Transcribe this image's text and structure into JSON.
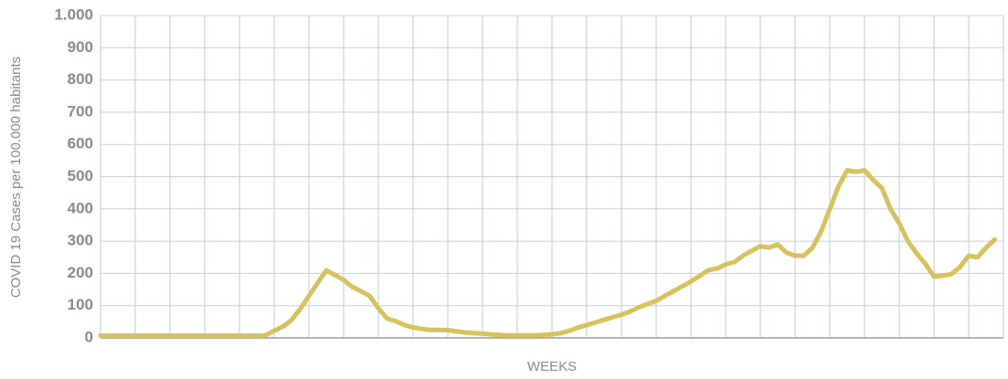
{
  "chart_data": {
    "type": "line",
    "ylabel": "COVID 19 Cases per 100.000 habitants",
    "xlabel": "WEEKS",
    "categories": [
      null,
      null,
      null,
      null,
      null,
      null,
      null,
      null,
      null,
      null,
      null,
      null,
      null,
      null,
      null,
      null,
      null,
      null,
      null,
      null,
      null,
      null,
      null,
      null,
      null,
      null,
      null,
      null,
      null,
      null,
      null,
      null,
      null,
      null,
      null,
      null,
      null,
      null,
      null,
      null,
      null,
      null,
      null,
      null,
      null,
      null,
      null,
      null,
      null,
      null,
      null,
      null,
      null,
      null,
      null,
      null,
      null,
      null,
      null,
      null,
      null,
      null,
      null,
      null,
      null,
      null,
      null,
      null,
      null,
      null,
      null,
      null,
      null,
      null,
      null,
      null,
      null,
      null,
      null,
      null,
      null,
      null,
      null,
      null,
      null,
      null,
      null,
      null,
      null,
      null,
      null,
      null,
      null,
      null,
      null,
      null,
      null,
      null,
      null,
      null,
      null,
      null,
      null,
      null
    ],
    "values": [
      7,
      7,
      7,
      7,
      7,
      7,
      7,
      7,
      7,
      7,
      7,
      7,
      7,
      7,
      7,
      7,
      7,
      7,
      7,
      8,
      22,
      35,
      55,
      90,
      130,
      170,
      210,
      195,
      180,
      158,
      145,
      130,
      92,
      60,
      52,
      40,
      33,
      28,
      25,
      25,
      24,
      20,
      17,
      15,
      13,
      11,
      9,
      8,
      8,
      8,
      8,
      9,
      11,
      15,
      22,
      32,
      40,
      48,
      56,
      64,
      72,
      82,
      95,
      105,
      115,
      130,
      145,
      160,
      175,
      192,
      210,
      215,
      228,
      235,
      255,
      270,
      285,
      280,
      290,
      265,
      255,
      255,
      280,
      330,
      400,
      470,
      520,
      515,
      520,
      490,
      465,
      400,
      355,
      300,
      262,
      230,
      190,
      193,
      198,
      220,
      255,
      250,
      280,
      305
    ],
    "color": "#d6c15a",
    "ylim": [
      0,
      1000
    ],
    "yticks": [
      0,
      100,
      200,
      300,
      400,
      500,
      600,
      700,
      800,
      900,
      {
        "value": 1000,
        "label": "1.000"
      }
    ],
    "grid": true
  }
}
